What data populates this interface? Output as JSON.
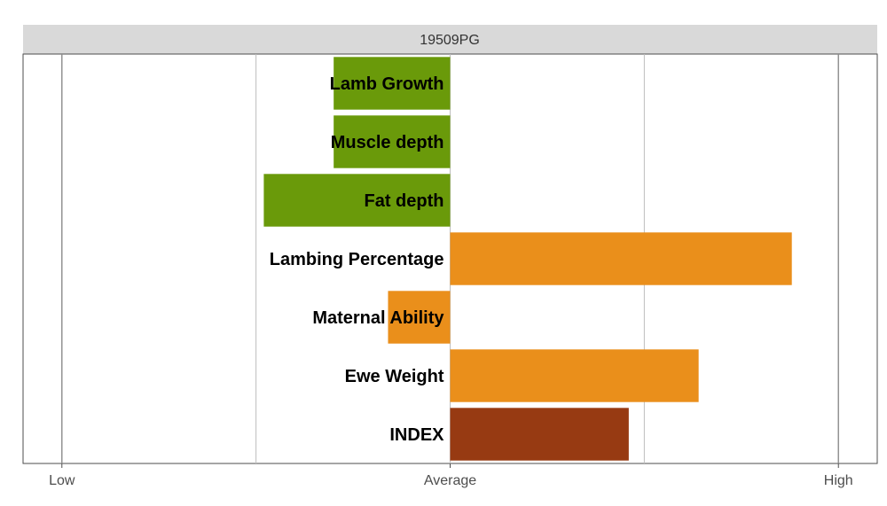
{
  "chart_data": {
    "type": "bar",
    "orientation": "horizontal",
    "title": "19509PG",
    "categories": [
      "Lamb Growth",
      "Muscle depth",
      "Fat depth",
      "Lambing Percentage",
      "Maternal Ability",
      "Ewe Weight",
      "INDEX"
    ],
    "values": [
      -0.3,
      -0.3,
      -0.48,
      0.88,
      -0.16,
      0.64,
      0.46
    ],
    "colors": [
      "#6a9a0a",
      "#6a9a0a",
      "#6a9a0a",
      "#ea8f1b",
      "#ea8f1b",
      "#ea8f1b",
      "#973a12"
    ],
    "xlim": [
      -1.1,
      1.1
    ],
    "x_ticks": [
      {
        "value": -1,
        "label": "Low"
      },
      {
        "value": 0,
        "label": "Average"
      },
      {
        "value": 1,
        "label": "High"
      }
    ],
    "gridlines": [
      -1,
      -0.5,
      0,
      0.5,
      1
    ],
    "grid": true,
    "legend": "none"
  }
}
